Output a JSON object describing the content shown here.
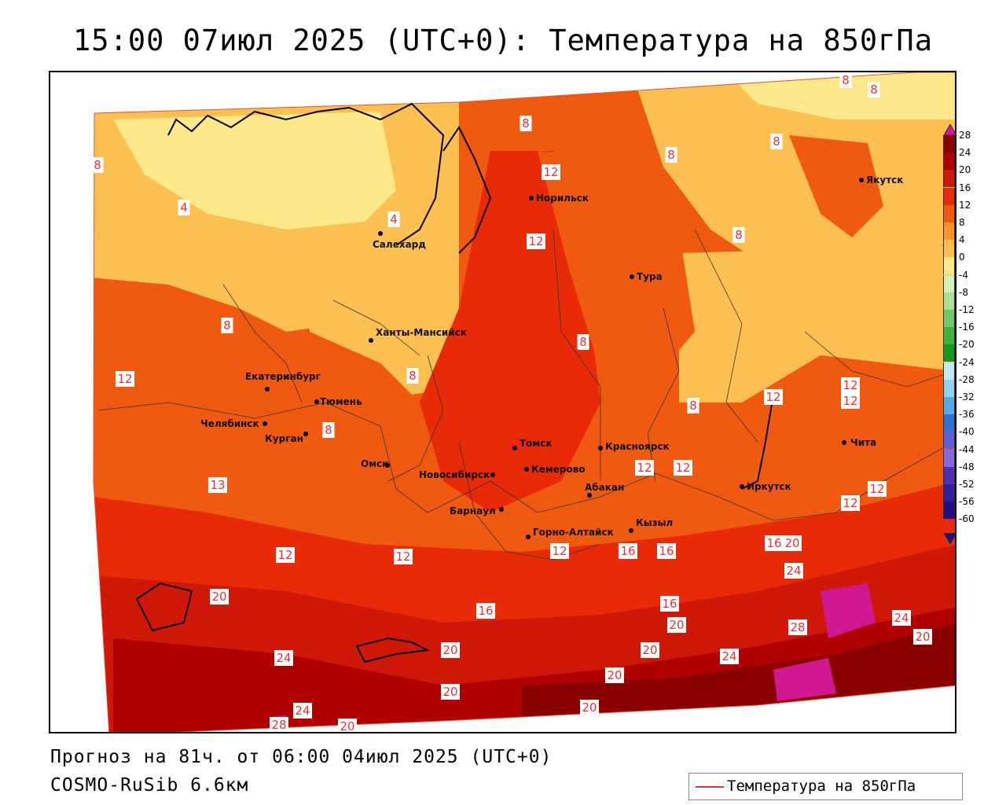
{
  "title": "15:00 07июл 2025 (UTC+0): Температура на 850гПа",
  "forecast_line": "Прогноз на 81ч. от 06:00 04июл 2025 (UTC+0)",
  "model_line": "COSMO-RuSib 6.6км",
  "legend": {
    "label": "Температура на 850гПа",
    "line_color": "#e83030"
  },
  "colorbar": {
    "labels": [
      "28",
      "24",
      "20",
      "16",
      "12",
      "8",
      "4",
      "0",
      "-4",
      "-8",
      "-12",
      "-16",
      "-20",
      "-24",
      "-28",
      "-32",
      "-36",
      "-40",
      "-44",
      "-48",
      "-52",
      "-56",
      "-60"
    ],
    "colors": [
      "#8a0000",
      "#b00000",
      "#d01808",
      "#e82a08",
      "#f05a10",
      "#fa9428",
      "#fcc050",
      "#fde88a",
      "#d8f0c0",
      "#a8e098",
      "#70c868",
      "#40b040",
      "#189820",
      "#c0e8f8",
      "#90d0f0",
      "#58a8e8",
      "#3070d0",
      "#6060d8",
      "#8868e0",
      "#5030b0",
      "#3020a0",
      "#201080"
    ],
    "top_color": "#d01890"
  },
  "cities": [
    {
      "name": "Норильск"
    },
    {
      "name": "Якутск"
    },
    {
      "name": "Салехард"
    },
    {
      "name": "Тура"
    },
    {
      "name": "Ханты-Мансийск"
    },
    {
      "name": "Екатеринбург"
    },
    {
      "name": "Тюмень"
    },
    {
      "name": "Челябинск"
    },
    {
      "name": "Курган"
    },
    {
      "name": "Омск"
    },
    {
      "name": "Томск"
    },
    {
      "name": "Новосибирск"
    },
    {
      "name": "Кемерово"
    },
    {
      "name": "Красноярск"
    },
    {
      "name": "Барнаул"
    },
    {
      "name": "Абакан"
    },
    {
      "name": "Горно-Алтайск"
    },
    {
      "name": "Кызыл"
    },
    {
      "name": "Иркутск"
    },
    {
      "name": "Чита"
    }
  ],
  "isotherm_labels": [
    "8",
    "8",
    "8",
    "12",
    "8",
    "8",
    "4",
    "4",
    "12",
    "8",
    "8",
    "12",
    "8",
    "8",
    "8",
    "12",
    "8",
    "12",
    "8",
    "12",
    "12",
    "13",
    "12",
    "12",
    "12",
    "12",
    "16",
    "16",
    "16",
    "12",
    "12",
    "16",
    "20",
    "20",
    "24",
    "16",
    "20",
    "24",
    "20",
    "20",
    "28",
    "24",
    "20",
    "20",
    "20",
    "24",
    "20",
    "24",
    "20",
    "28"
  ]
}
